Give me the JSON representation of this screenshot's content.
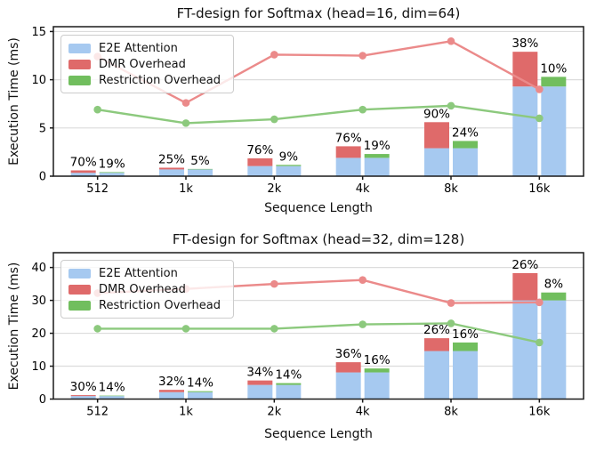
{
  "figure": {
    "description": "Two stacked bar charts with overhead lines comparing FT-design softmax execution time"
  },
  "legend": {
    "items": [
      "E2E Attention",
      "DMR Overhead",
      "Restriction Overhead"
    ]
  },
  "colors": {
    "e2e_bar": "#A6C9F0",
    "dmr_bar": "#DF6A6A",
    "restriction_bar": "#71BE5E",
    "dmr_line": "#EB8A8A",
    "restriction_line": "#8CC97D",
    "grid": "#DCDCDC",
    "spine": "#1A1A1A",
    "text": "#000000"
  },
  "chart_data": [
    {
      "type": "bar",
      "title": "FT-design for Softmax (head=16, dim=64)",
      "xlabel": "Sequence Length",
      "ylabel": "Execution Time (ms)",
      "categories": [
        "512",
        "1k",
        "2k",
        "4k",
        "8k",
        "16k"
      ],
      "yticks": [
        0,
        5,
        10,
        15
      ],
      "ylim": [
        0,
        15.5
      ],
      "grid": true,
      "legend_position": "upper left",
      "series": [
        {
          "name": "E2E Attention",
          "role": "bar-base",
          "values": [
            0.35,
            0.7,
            1.05,
            1.9,
            2.9,
            9.3
          ]
        },
        {
          "name": "DMR Overhead",
          "role": "bar-stack-left",
          "values": [
            0.25,
            0.18,
            0.8,
            1.2,
            2.7,
            3.6
          ],
          "labels": [
            "70%",
            "25%",
            "76%",
            "76%",
            "90%",
            "38%"
          ]
        },
        {
          "name": "Restriction Overhead",
          "role": "bar-stack-right",
          "values": [
            0.07,
            0.05,
            0.12,
            0.4,
            0.75,
            1.0
          ],
          "labels": [
            "19%",
            "5%",
            "9%",
            "19%",
            "24%",
            "10%"
          ]
        },
        {
          "name": "DMR Overhead line",
          "role": "line",
          "values": [
            12.4,
            7.6,
            12.6,
            12.5,
            14.0,
            9.0
          ]
        },
        {
          "name": "Restriction Overhead line",
          "role": "line",
          "values": [
            6.9,
            5.5,
            5.9,
            6.9,
            7.3,
            6.0
          ]
        }
      ]
    },
    {
      "type": "bar",
      "title": "FT-design for Softmax (head=32, dim=128)",
      "xlabel": "Sequence Length",
      "ylabel": "Execution Time (ms)",
      "categories": [
        "512",
        "1k",
        "2k",
        "4k",
        "8k",
        "16k"
      ],
      "yticks": [
        0,
        10,
        20,
        30,
        40
      ],
      "ylim": [
        0,
        44.5
      ],
      "grid": true,
      "legend_position": "upper left",
      "series": [
        {
          "name": "E2E Attention",
          "role": "bar-base",
          "values": [
            0.9,
            2.1,
            4.3,
            8.1,
            14.6,
            30.0
          ]
        },
        {
          "name": "DMR Overhead",
          "role": "bar-stack-left",
          "values": [
            0.3,
            0.7,
            1.35,
            3.1,
            3.9,
            8.3
          ],
          "labels": [
            "30%",
            "32%",
            "34%",
            "36%",
            "26%",
            "26%"
          ]
        },
        {
          "name": "Restriction Overhead",
          "role": "bar-stack-right",
          "values": [
            0.15,
            0.3,
            0.55,
            1.2,
            2.6,
            2.4
          ],
          "labels": [
            "14%",
            "14%",
            "14%",
            "16%",
            "16%",
            "8%"
          ]
        },
        {
          "name": "DMR Overhead line",
          "role": "line",
          "values": [
            32.2,
            33.5,
            35.0,
            36.2,
            29.2,
            29.4
          ]
        },
        {
          "name": "Restriction Overhead line",
          "role": "line",
          "values": [
            21.4,
            21.4,
            21.4,
            22.7,
            23.0,
            17.2
          ]
        }
      ]
    }
  ]
}
